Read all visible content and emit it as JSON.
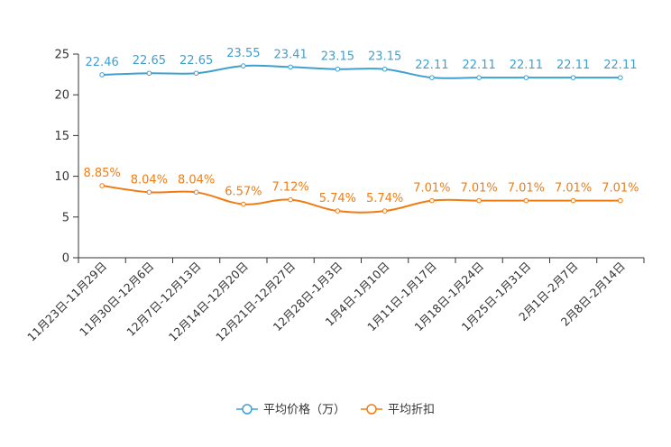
{
  "chart_data": {
    "type": "line",
    "title": "",
    "xlabel": "",
    "ylabel": "",
    "ylim": [
      0,
      25
    ],
    "yticks": [
      0,
      5,
      10,
      15,
      20,
      25
    ],
    "grid": false,
    "legend_position": "bottom-center",
    "categories": [
      "11月23日-11月29日",
      "11月30日-12月6日",
      "12月7日-12月13日",
      "12月14日-12月20日",
      "12月21日-12月27日",
      "12月28日-1月3日",
      "1月4日-1月10日",
      "1月11日-1月17日",
      "1月18日-1月24日",
      "1月25日-1月31日",
      "2月1日-2月7日",
      "2月8日-2月14日"
    ],
    "series": [
      {
        "name": "平均价格（万）",
        "color": "#3fa0d0",
        "values": [
          22.46,
          22.65,
          22.65,
          23.55,
          23.41,
          23.15,
          23.15,
          22.11,
          22.11,
          22.11,
          22.11,
          22.11
        ],
        "labels": [
          "22.46",
          "22.65",
          "22.65",
          "23.55",
          "23.41",
          "23.15",
          "23.15",
          "22.11",
          "22.11",
          "22.11",
          "22.11",
          "22.11"
        ]
      },
      {
        "name": "平均折扣",
        "color": "#f07d14",
        "values": [
          8.85,
          8.04,
          8.04,
          6.57,
          7.12,
          5.74,
          5.74,
          7.01,
          7.01,
          7.01,
          7.01,
          7.01
        ],
        "labels": [
          "8.85%",
          "8.04%",
          "8.04%",
          "6.57%",
          "7.12%",
          "5.74%",
          "5.74%",
          "7.01%",
          "7.01%",
          "7.01%",
          "7.01%",
          "7.01%"
        ]
      }
    ]
  }
}
